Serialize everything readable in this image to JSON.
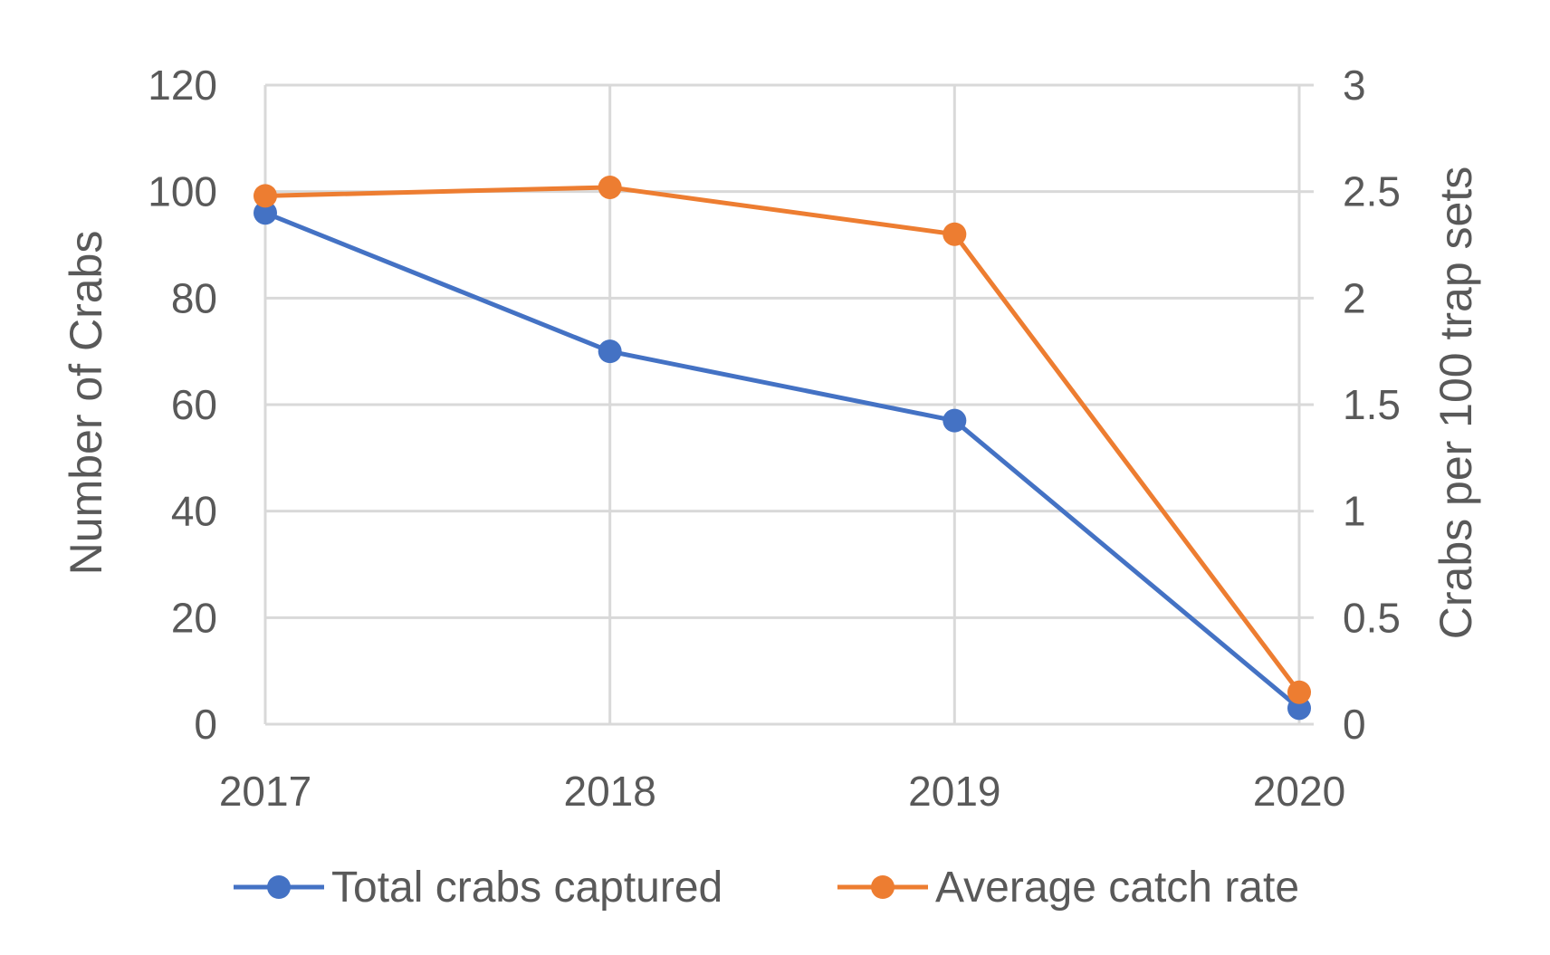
{
  "chart_data": {
    "type": "line",
    "x": [
      "2017",
      "2018",
      "2019",
      "2020"
    ],
    "series": [
      {
        "name": "Total crabs captured",
        "axis": "left",
        "color": "#4472C4",
        "values": [
          96,
          70,
          57,
          3
        ]
      },
      {
        "name": "Average catch rate",
        "axis": "right",
        "color": "#ED7D31",
        "values": [
          2.48,
          2.52,
          2.3,
          0.15
        ]
      }
    ],
    "ylabel": "Number of Crabs",
    "y2label": "Crabs per 100 trap sets",
    "ylim": [
      0,
      120
    ],
    "y2lim": [
      0,
      3
    ],
    "yticks": [
      "0",
      "20",
      "40",
      "60",
      "80",
      "100",
      "120"
    ],
    "y2ticks": [
      "0",
      "0.5",
      "1",
      "1.5",
      "2",
      "2.5",
      "3"
    ],
    "grid": true,
    "legend_position": "bottom",
    "colors": {
      "grid": "#D9D9D9",
      "text": "#595959"
    }
  }
}
